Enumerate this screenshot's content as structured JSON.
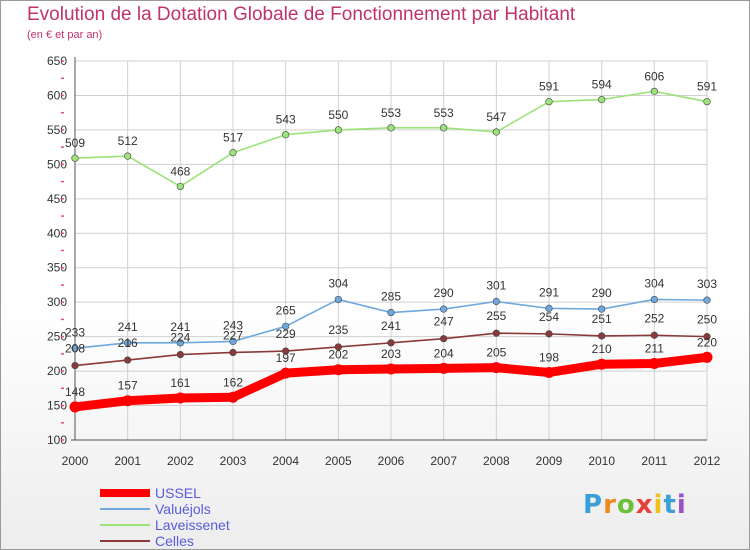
{
  "title": "Evolution de la Dotation Globale de Fonctionnement par Habitant",
  "subtitle": "(en € et par an)",
  "logo_text": "Proxiti",
  "chart_data": {
    "type": "line",
    "title": "Evolution de la Dotation Globale de Fonctionnement par Habitant",
    "subtitle": "(en € et par an)",
    "x": [
      2000,
      2001,
      2002,
      2003,
      2004,
      2005,
      2006,
      2007,
      2008,
      2009,
      2010,
      2011,
      2012
    ],
    "ylim": [
      100,
      650
    ],
    "yticks": [
      100,
      150,
      200,
      250,
      300,
      350,
      400,
      450,
      500,
      550,
      600,
      650
    ],
    "grid": true,
    "legend": "bottom-left",
    "series": [
      {
        "name": "USSEL",
        "color": "#ff0000",
        "values": [
          148,
          157,
          161,
          162,
          197,
          202,
          203,
          204,
          205,
          198,
          210,
          211,
          220
        ]
      },
      {
        "name": "Valuéjols",
        "color": "#6fa8dc",
        "values": [
          233,
          241,
          241,
          243,
          265,
          304,
          285,
          290,
          301,
          291,
          290,
          304,
          303
        ]
      },
      {
        "name": "Laveissenet",
        "color": "#9be37a",
        "values": [
          509,
          512,
          468,
          517,
          543,
          550,
          553,
          553,
          547,
          591,
          594,
          606,
          591
        ]
      },
      {
        "name": "Celles",
        "color": "#8a3a3a",
        "values": [
          208,
          216,
          224,
          227,
          229,
          235,
          241,
          247,
          255,
          254,
          251,
          252,
          250
        ]
      }
    ]
  }
}
